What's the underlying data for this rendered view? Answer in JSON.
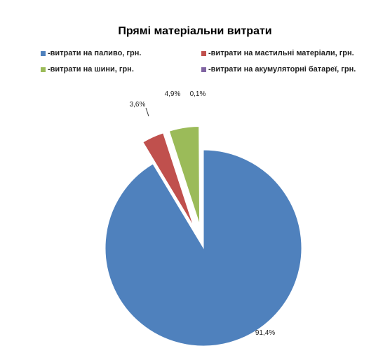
{
  "chart_data": {
    "type": "pie",
    "title": "Прямі матеріальни витрати",
    "legend_position": "top",
    "slices": [
      {
        "name": "-витрати на паливо, грн.",
        "value": 91.4,
        "label": "91,4%",
        "color": "#4F81BD"
      },
      {
        "name": "-витрати на мастильні матеріали, грн.",
        "value": 3.6,
        "label": "3,6%",
        "color": "#C0504D"
      },
      {
        "name": "-витрати на шини, грн.",
        "value": 4.9,
        "label": "4,9%",
        "color": "#9BBB59"
      },
      {
        "name": "-витрати на акумуляторні батареї, грн.",
        "value": 0.1,
        "label": "0,1%",
        "color": "#8064A2"
      }
    ]
  }
}
